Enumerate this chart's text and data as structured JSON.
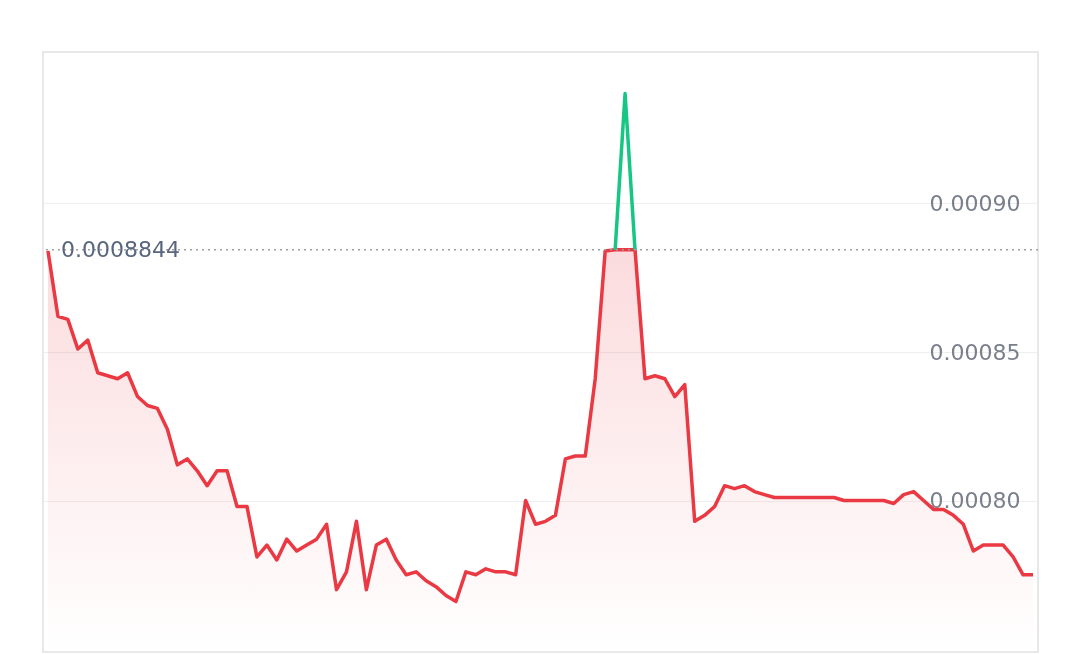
{
  "chart_data": {
    "type": "area",
    "categories": [
      null,
      null,
      null,
      null,
      null,
      null,
      null,
      null,
      null,
      null,
      null,
      null,
      null,
      null,
      null,
      null,
      null,
      null,
      null,
      null,
      null,
      null,
      null,
      null,
      null,
      null,
      null,
      null,
      null,
      null,
      null,
      null,
      null,
      null,
      null,
      null,
      null,
      null,
      null,
      null,
      null,
      null,
      null,
      null,
      null,
      null,
      null,
      null,
      null,
      null,
      null,
      null,
      null,
      null,
      null,
      null,
      null,
      null,
      null,
      null,
      null,
      null,
      null,
      null,
      null,
      null,
      null,
      null,
      null,
      null,
      null,
      null,
      null,
      null,
      null,
      null,
      null,
      null,
      null,
      null,
      null,
      null,
      null,
      null,
      null,
      null,
      null,
      null,
      null,
      null,
      null,
      null,
      null,
      null,
      null,
      null,
      null,
      null,
      null,
      null
    ],
    "series": [
      {
        "color": "#ea3943",
        "values": [
          0.000884,
          0.000862,
          0.000861,
          0.000851,
          0.000854,
          0.000843,
          0.000842,
          0.000841,
          0.000843,
          0.000835,
          0.000832,
          0.000831,
          0.000824,
          0.000812,
          0.000814,
          0.00081,
          0.000805,
          0.00081,
          0.00081,
          0.000798,
          0.000798,
          0.000781,
          0.000785,
          0.00078,
          0.000787,
          0.000783,
          0.000785,
          0.000787,
          0.000792,
          0.00077,
          0.000776,
          0.000793,
          0.00077,
          0.000785,
          0.000787,
          0.00078,
          0.000775,
          0.000776,
          0.000773,
          0.000771,
          0.000768,
          0.000766,
          0.000776,
          0.000775,
          0.000777,
          0.000776,
          0.000776,
          0.000775,
          0.0008,
          0.000792,
          0.000793,
          0.000795,
          0.000814,
          0.000815,
          0.000815,
          0.000841,
          0.000884,
          0.0008844,
          0.0008844,
          0.0008844,
          0.000841,
          0.000842,
          0.000841,
          0.000835,
          0.000839,
          0.000793,
          0.000795,
          0.000798,
          0.000805,
          0.000804,
          0.000805,
          0.000803,
          0.000802,
          0.000801,
          0.000801,
          0.000801,
          0.000801,
          0.000801,
          0.000801,
          0.000801,
          0.0008,
          0.0008,
          0.0008,
          0.0008,
          0.0008,
          0.000799,
          0.000802,
          0.000803,
          0.0008,
          0.000797,
          0.000797,
          0.000795,
          0.000792,
          0.000783,
          0.000785,
          0.000785,
          0.000785,
          0.000781,
          0.000775,
          0.000775
        ]
      },
      {
        "type": "line",
        "color": "#16c784",
        "values": [
          null,
          null,
          null,
          null,
          null,
          null,
          null,
          null,
          null,
          null,
          null,
          null,
          null,
          null,
          null,
          null,
          null,
          null,
          null,
          null,
          null,
          null,
          null,
          null,
          null,
          null,
          null,
          null,
          null,
          null,
          null,
          null,
          null,
          null,
          null,
          null,
          null,
          null,
          null,
          null,
          null,
          null,
          null,
          null,
          null,
          null,
          null,
          null,
          null,
          null,
          null,
          null,
          null,
          null,
          null,
          null,
          null,
          0.0008844,
          0.000937,
          0.0008844,
          null,
          null,
          null,
          null,
          null,
          null,
          null,
          null,
          null,
          null,
          null,
          null,
          null,
          null,
          null,
          null,
          null,
          null,
          null,
          null,
          null,
          null,
          null,
          null,
          null,
          null,
          null,
          null,
          null,
          null,
          null,
          null,
          null,
          null,
          null,
          null,
          null,
          null,
          null,
          null
        ]
      }
    ],
    "ylim": [
      0.000749,
      0.000951
    ],
    "yticks": [
      {
        "value": 0.0008,
        "label": "0.00080"
      },
      {
        "value": 0.00085,
        "label": "0.00085"
      },
      {
        "value": 0.0009,
        "label": "0.00090"
      }
    ],
    "ref_lines": [
      {
        "axis": "y",
        "value": 0.0008844,
        "label": "0.0008844",
        "color": "#a0a0a0",
        "line_style": "dotted"
      }
    ],
    "grid": "y",
    "tick_labels": "y"
  }
}
